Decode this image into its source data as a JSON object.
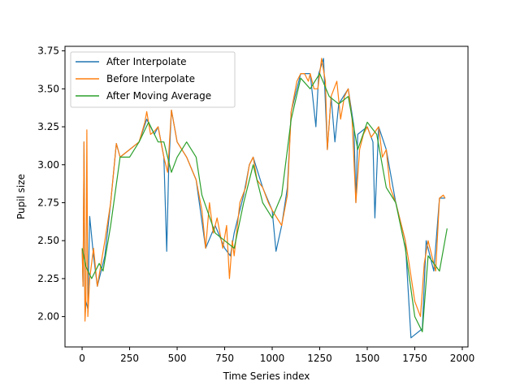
{
  "chart_data": {
    "type": "line",
    "title": "",
    "xlabel": "Time Series index",
    "ylabel": "Pupil size",
    "xlim": [
      -90,
      2030
    ],
    "ylim": [
      1.8,
      3.78
    ],
    "xticks": [
      0,
      250,
      500,
      750,
      1000,
      1250,
      1500,
      1750,
      2000
    ],
    "yticks": [
      2.0,
      2.25,
      2.5,
      2.75,
      3.0,
      3.25,
      3.5,
      3.75
    ],
    "xtick_labels": [
      "0",
      "250",
      "500",
      "750",
      "1000",
      "1250",
      "1500",
      "1750",
      "2000"
    ],
    "ytick_labels": [
      "2.00",
      "2.25",
      "2.50",
      "2.75",
      "3.00",
      "3.25",
      "3.50",
      "3.75"
    ],
    "grid": false,
    "legend": {
      "placement": "top-left"
    },
    "series": [
      {
        "name": "After Interpolate",
        "color": "#1f77b4",
        "points": [
          [
            0,
            2.45
          ],
          [
            5,
            2.2
          ],
          [
            10,
            3.15
          ],
          [
            15,
            2.0
          ],
          [
            20,
            2.1
          ],
          [
            30,
            2.05
          ],
          [
            40,
            2.66
          ],
          [
            60,
            2.4
          ],
          [
            80,
            2.2
          ],
          [
            120,
            2.4
          ],
          [
            150,
            2.75
          ],
          [
            180,
            3.14
          ],
          [
            200,
            3.05
          ],
          [
            250,
            3.1
          ],
          [
            300,
            3.15
          ],
          [
            340,
            3.3
          ],
          [
            380,
            3.2
          ],
          [
            400,
            3.25
          ],
          [
            430,
            3.05
          ],
          [
            445,
            2.43
          ],
          [
            455,
            2.95
          ],
          [
            470,
            3.36
          ],
          [
            500,
            3.15
          ],
          [
            550,
            3.05
          ],
          [
            600,
            2.9
          ],
          [
            650,
            2.45
          ],
          [
            700,
            2.6
          ],
          [
            750,
            2.45
          ],
          [
            780,
            2.4
          ],
          [
            800,
            2.55
          ],
          [
            850,
            2.8
          ],
          [
            880,
            3.0
          ],
          [
            900,
            3.05
          ],
          [
            950,
            2.85
          ],
          [
            1000,
            2.7
          ],
          [
            1020,
            2.43
          ],
          [
            1050,
            2.6
          ],
          [
            1080,
            2.85
          ],
          [
            1100,
            3.35
          ],
          [
            1150,
            3.6
          ],
          [
            1200,
            3.6
          ],
          [
            1230,
            3.25
          ],
          [
            1245,
            3.6
          ],
          [
            1270,
            3.7
          ],
          [
            1290,
            3.1
          ],
          [
            1310,
            3.45
          ],
          [
            1330,
            3.15
          ],
          [
            1350,
            3.4
          ],
          [
            1400,
            3.5
          ],
          [
            1430,
            3.25
          ],
          [
            1440,
            2.75
          ],
          [
            1450,
            3.2
          ],
          [
            1500,
            3.25
          ],
          [
            1530,
            3.15
          ],
          [
            1540,
            2.65
          ],
          [
            1560,
            3.25
          ],
          [
            1600,
            3.1
          ],
          [
            1650,
            2.75
          ],
          [
            1700,
            2.5
          ],
          [
            1730,
            1.86
          ],
          [
            1790,
            1.92
          ],
          [
            1810,
            2.5
          ],
          [
            1850,
            2.3
          ],
          [
            1880,
            2.78
          ],
          [
            1910,
            2.78
          ]
        ]
      },
      {
        "name": "Before Interpolate",
        "color": "#ff7f0e",
        "points": [
          [
            0,
            2.45
          ],
          [
            5,
            2.2
          ],
          [
            10,
            3.15
          ],
          [
            15,
            1.97
          ],
          [
            20,
            2.1
          ],
          [
            25,
            3.23
          ],
          [
            30,
            2.0
          ],
          [
            40,
            2.25
          ],
          [
            60,
            2.45
          ],
          [
            80,
            2.2
          ],
          [
            120,
            2.5
          ],
          [
            150,
            2.75
          ],
          [
            180,
            3.14
          ],
          [
            200,
            3.05
          ],
          [
            250,
            3.1
          ],
          [
            300,
            3.15
          ],
          [
            330,
            3.28
          ],
          [
            340,
            3.35
          ],
          [
            360,
            3.2
          ],
          [
            380,
            3.22
          ],
          [
            400,
            3.25
          ],
          [
            430,
            3.05
          ],
          [
            450,
            2.95
          ],
          [
            470,
            3.36
          ],
          [
            500,
            3.15
          ],
          [
            550,
            3.05
          ],
          [
            600,
            2.9
          ],
          [
            630,
            2.7
          ],
          [
            650,
            2.45
          ],
          [
            670,
            2.75
          ],
          [
            690,
            2.55
          ],
          [
            710,
            2.65
          ],
          [
            740,
            2.45
          ],
          [
            760,
            2.6
          ],
          [
            775,
            2.25
          ],
          [
            790,
            2.5
          ],
          [
            800,
            2.4
          ],
          [
            830,
            2.75
          ],
          [
            860,
            2.85
          ],
          [
            880,
            3.0
          ],
          [
            900,
            3.05
          ],
          [
            920,
            2.9
          ],
          [
            950,
            2.85
          ],
          [
            980,
            2.75
          ],
          [
            1000,
            2.7
          ],
          [
            1050,
            2.6
          ],
          [
            1080,
            2.8
          ],
          [
            1100,
            3.35
          ],
          [
            1130,
            3.55
          ],
          [
            1150,
            3.6
          ],
          [
            1170,
            3.6
          ],
          [
            1190,
            3.55
          ],
          [
            1200,
            3.6
          ],
          [
            1220,
            3.5
          ],
          [
            1240,
            3.5
          ],
          [
            1260,
            3.7
          ],
          [
            1280,
            3.55
          ],
          [
            1290,
            3.1
          ],
          [
            1310,
            3.45
          ],
          [
            1340,
            3.55
          ],
          [
            1360,
            3.3
          ],
          [
            1380,
            3.45
          ],
          [
            1400,
            3.5
          ],
          [
            1420,
            3.3
          ],
          [
            1440,
            2.75
          ],
          [
            1460,
            3.1
          ],
          [
            1480,
            3.2
          ],
          [
            1500,
            3.25
          ],
          [
            1520,
            3.18
          ],
          [
            1560,
            3.25
          ],
          [
            1580,
            3.05
          ],
          [
            1600,
            3.1
          ],
          [
            1620,
            2.85
          ],
          [
            1650,
            2.75
          ],
          [
            1680,
            2.6
          ],
          [
            1700,
            2.5
          ],
          [
            1720,
            2.35
          ],
          [
            1750,
            2.1
          ],
          [
            1780,
            2.0
          ],
          [
            1800,
            2.35
          ],
          [
            1820,
            2.5
          ],
          [
            1840,
            2.4
          ],
          [
            1860,
            2.3
          ],
          [
            1880,
            2.78
          ],
          [
            1900,
            2.8
          ],
          [
            1910,
            2.78
          ]
        ]
      },
      {
        "name": "After Moving Average",
        "color": "#2ca02c",
        "points": [
          [
            0,
            2.45
          ],
          [
            20,
            2.33
          ],
          [
            50,
            2.25
          ],
          [
            90,
            2.35
          ],
          [
            110,
            2.3
          ],
          [
            150,
            2.6
          ],
          [
            200,
            3.05
          ],
          [
            250,
            3.05
          ],
          [
            300,
            3.15
          ],
          [
            350,
            3.28
          ],
          [
            400,
            3.15
          ],
          [
            430,
            3.15
          ],
          [
            470,
            2.95
          ],
          [
            500,
            3.05
          ],
          [
            550,
            3.15
          ],
          [
            600,
            3.05
          ],
          [
            630,
            2.8
          ],
          [
            700,
            2.55
          ],
          [
            750,
            2.5
          ],
          [
            800,
            2.45
          ],
          [
            850,
            2.75
          ],
          [
            900,
            3.0
          ],
          [
            950,
            2.75
          ],
          [
            1000,
            2.65
          ],
          [
            1050,
            2.8
          ],
          [
            1100,
            3.3
          ],
          [
            1150,
            3.57
          ],
          [
            1200,
            3.5
          ],
          [
            1250,
            3.6
          ],
          [
            1300,
            3.45
          ],
          [
            1350,
            3.4
          ],
          [
            1400,
            3.45
          ],
          [
            1450,
            3.1
          ],
          [
            1500,
            3.28
          ],
          [
            1550,
            3.2
          ],
          [
            1600,
            2.85
          ],
          [
            1650,
            2.75
          ],
          [
            1700,
            2.45
          ],
          [
            1750,
            2.0
          ],
          [
            1790,
            1.9
          ],
          [
            1820,
            2.4
          ],
          [
            1850,
            2.35
          ],
          [
            1880,
            2.3
          ],
          [
            1920,
            2.58
          ]
        ]
      }
    ]
  }
}
